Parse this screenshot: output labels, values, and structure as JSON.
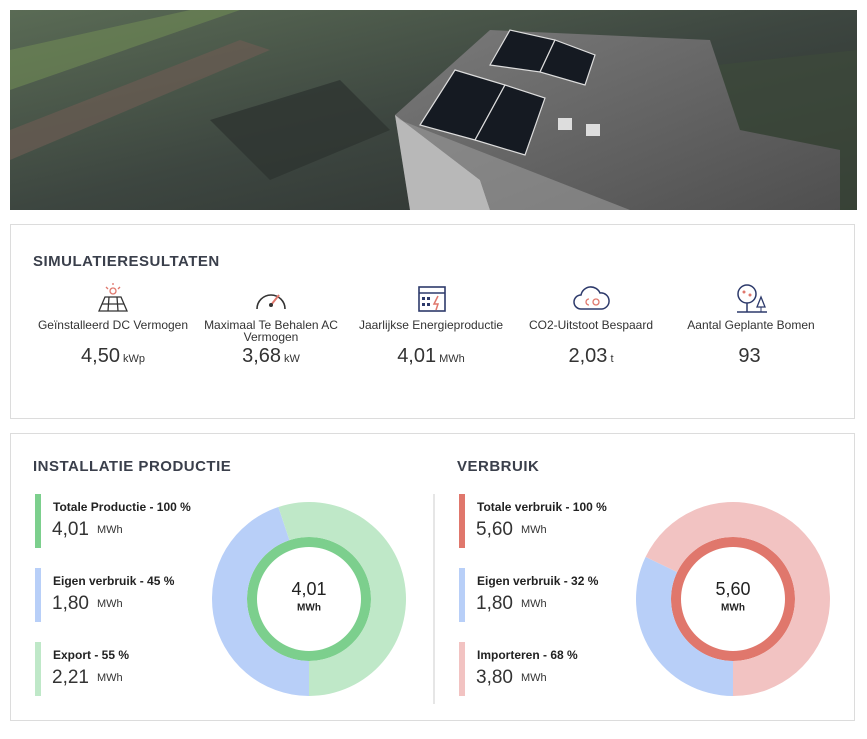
{
  "summary": {
    "title": "SIMULATIERESULTATEN",
    "metrics": [
      {
        "label": "Geïnstalleerd DC Vermogen",
        "value": "4,50",
        "unit": "kWp"
      },
      {
        "label": "Maximaal Te Behalen AC Vermogen",
        "value": "3,68",
        "unit": "kW"
      },
      {
        "label": "Jaarlijkse Energieproductie",
        "value": "4,01",
        "unit": "MWh"
      },
      {
        "label": "CO2-Uitstoot Bespaard",
        "value": "2,03",
        "unit": "t"
      },
      {
        "label": "Aantal Geplante Bomen",
        "value": "93",
        "unit": null
      }
    ]
  },
  "chart_data": [
    {
      "type": "donut",
      "title": "INSTALLATIE PRODUCTIE",
      "unit": "MWh",
      "categories": [
        "Totale Productie - 100 %",
        "Eigen verbruik - 45 %",
        "Export - 55 %"
      ],
      "values": [
        4.01,
        1.8,
        2.21
      ],
      "value_labels": [
        "4,01",
        "1,80",
        "2,21"
      ],
      "colors": [
        "#7ccf8d",
        "#b8cff8",
        "#bfe8c8"
      ]
    },
    {
      "type": "donut",
      "title": "VERBRUIK",
      "unit": "MWh",
      "categories": [
        "Totale verbruik - 100 %",
        "Eigen verbruik - 32 %",
        "Importeren - 68 %"
      ],
      "values": [
        5.6,
        1.8,
        3.8
      ],
      "value_labels": [
        "5,60",
        "1,80",
        "3,80"
      ],
      "colors": [
        "#e0776c",
        "#b8cff8",
        "#f2c3c2"
      ]
    }
  ]
}
